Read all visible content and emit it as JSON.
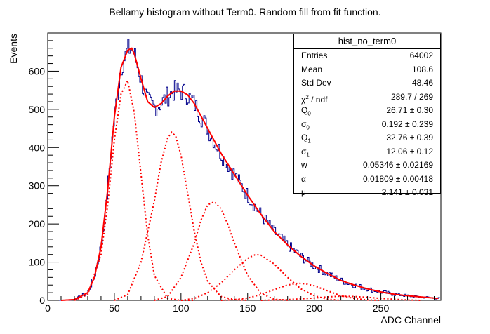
{
  "chart_data": {
    "type": "histogram",
    "title": "Bellamy histogram without Term0. Random fill from fit function.",
    "xlabel": "ADC Channel",
    "ylabel": "Events",
    "xlim": [
      0,
      295
    ],
    "ylim": [
      0,
      700
    ],
    "xticks": [
      0,
      50,
      100,
      150,
      200,
      250
    ],
    "yticks": [
      0,
      100,
      200,
      300,
      400,
      500,
      600
    ],
    "grid": false,
    "histogram_color": "#00008b",
    "fit_color": "#ff0000",
    "stats": {
      "name": "hist_no_term0",
      "rows": [
        {
          "label": "Entries",
          "value": "64002"
        },
        {
          "label": "Mean",
          "value": "108.6"
        },
        {
          "label": "Std Dev",
          "value": "48.46"
        },
        {
          "label": "χ² / ndf",
          "value": "289.7 / 269"
        },
        {
          "label": "Q0",
          "value": "26.71 ± 0.30"
        },
        {
          "label": "σ0",
          "value": "0.192 ± 0.239"
        },
        {
          "label": "Q1",
          "value": "32.76 ± 0.39"
        },
        {
          "label": "σ1",
          "value": "12.06 ± 0.12"
        },
        {
          "label": "w",
          "value": "0.05346 ± 0.02169"
        },
        {
          "label": "α",
          "value": "0.01809 ± 0.00418"
        },
        {
          "label": "μ",
          "value": "2.141 ± 0.031"
        }
      ]
    },
    "total_fit": {
      "x": [
        10,
        20,
        30,
        35,
        40,
        45,
        50,
        55,
        60,
        63,
        65,
        70,
        75,
        80,
        85,
        90,
        95,
        100,
        105,
        110,
        120,
        130,
        140,
        150,
        160,
        170,
        180,
        190,
        200,
        210,
        220,
        230,
        240,
        250,
        260,
        270,
        280,
        293
      ],
      "y": [
        0,
        2,
        20,
        60,
        140,
        290,
        480,
        610,
        655,
        660,
        645,
        580,
        520,
        505,
        515,
        535,
        548,
        548,
        538,
        515,
        450,
        385,
        330,
        275,
        225,
        180,
        145,
        115,
        90,
        70,
        52,
        40,
        30,
        22,
        16,
        12,
        9,
        5
      ]
    },
    "components": [
      {
        "x": [
          20,
          30,
          40,
          45,
          50,
          55,
          60,
          65,
          70,
          75,
          80,
          90,
          100,
          110
        ],
        "y": [
          0,
          15,
          120,
          250,
          420,
          540,
          575,
          490,
          330,
          170,
          65,
          5,
          0,
          0
        ]
      },
      {
        "x": [
          50,
          60,
          70,
          80,
          85,
          90,
          93,
          96,
          100,
          105,
          110,
          115,
          120,
          130,
          140,
          150
        ],
        "y": [
          0,
          15,
          100,
          260,
          360,
          425,
          440,
          430,
          380,
          280,
          180,
          100,
          50,
          10,
          2,
          0
        ]
      },
      {
        "x": [
          80,
          90,
          100,
          110,
          115,
          120,
          125,
          130,
          135,
          140,
          150,
          160,
          170,
          180
        ],
        "y": [
          0,
          10,
          60,
          150,
          210,
          250,
          258,
          240,
          200,
          150,
          65,
          18,
          3,
          0
        ]
      },
      {
        "x": [
          100,
          110,
          120,
          130,
          140,
          150,
          156,
          160,
          170,
          180,
          190,
          200,
          210,
          220
        ],
        "y": [
          0,
          5,
          20,
          45,
          80,
          110,
          120,
          118,
          95,
          60,
          30,
          12,
          3,
          0
        ]
      },
      {
        "x": [
          130,
          140,
          150,
          160,
          170,
          180,
          188,
          195,
          200,
          210,
          220,
          230,
          240,
          250
        ],
        "y": [
          0,
          2,
          6,
          15,
          28,
          40,
          45,
          42,
          38,
          25,
          12,
          5,
          1,
          0
        ]
      },
      {
        "x": [
          160,
          180,
          200,
          210,
          220,
          230,
          240,
          250,
          260,
          270,
          280
        ],
        "y": [
          0,
          2,
          6,
          9,
          11,
          10,
          8,
          5,
          3,
          1,
          0
        ]
      }
    ]
  }
}
